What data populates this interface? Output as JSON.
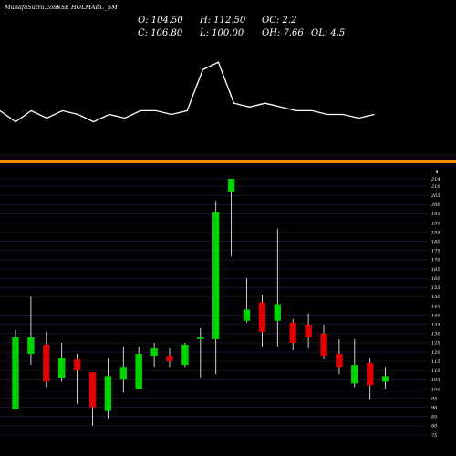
{
  "watermark": "MunafaSutra.com",
  "ticker": "NSE HOLMARC_SM",
  "stats": {
    "o": "O: 104.50",
    "h": "H: 112.50",
    "oc": "OC: 2.2",
    "c": "C: 106.80",
    "l": "L: 100.00",
    "oh": "OH: 7.66",
    "ol": "OL: 4.5"
  },
  "colors": {
    "background": "#000000",
    "up": "#00d400",
    "down": "#e00000",
    "grid": "#23244a",
    "separator": "#ff8c00",
    "line": "#ffffff"
  },
  "indicator": {
    "values": [
      47,
      44,
      47,
      45,
      47,
      46,
      44,
      46,
      45,
      47,
      47,
      46,
      47,
      58,
      60,
      49,
      48,
      49,
      48,
      47,
      47,
      46,
      46,
      45,
      46
    ]
  },
  "chart_data": {
    "type": "candlestick",
    "y_ticks": [
      "214",
      "210",
      "205",
      "200",
      "195",
      "190",
      "185",
      "180",
      "175",
      "170",
      "165",
      "160",
      "155",
      "150",
      "145",
      "140",
      "135",
      "130",
      "125",
      "120",
      "115",
      "110",
      "105",
      "100",
      "95",
      "90",
      "85",
      "80",
      "75"
    ],
    "ylim": [
      75,
      214
    ],
    "candles": [
      {
        "o": 89,
        "h": 132,
        "l": 89,
        "c": 128
      },
      {
        "o": 119,
        "h": 150,
        "l": 113,
        "c": 128
      },
      {
        "o": 124,
        "h": 131,
        "l": 101,
        "c": 104
      },
      {
        "o": 106,
        "h": 125,
        "l": 104,
        "c": 117
      },
      {
        "o": 116,
        "h": 119,
        "l": 92,
        "c": 110
      },
      {
        "o": 109,
        "h": 109,
        "l": 80,
        "c": 90
      },
      {
        "o": 88,
        "h": 117,
        "l": 84,
        "c": 107
      },
      {
        "o": 105,
        "h": 123,
        "l": 98,
        "c": 112
      },
      {
        "o": 100,
        "h": 123,
        "l": 100,
        "c": 119
      },
      {
        "o": 118,
        "h": 125,
        "l": 112,
        "c": 122
      },
      {
        "o": 118,
        "h": 122,
        "l": 112,
        "c": 115
      },
      {
        "o": 113,
        "h": 125,
        "l": 112,
        "c": 124
      },
      {
        "o": 127,
        "h": 133,
        "l": 106,
        "c": 128
      },
      {
        "o": 127,
        "h": 202,
        "l": 108,
        "c": 196
      },
      {
        "o": 207,
        "h": 214,
        "l": 172,
        "c": 214
      },
      {
        "o": 137,
        "h": 160,
        "l": 136,
        "c": 143
      },
      {
        "o": 147,
        "h": 151,
        "l": 123,
        "c": 131
      },
      {
        "o": 137,
        "h": 187,
        "l": 123,
        "c": 146
      },
      {
        "o": 136,
        "h": 138,
        "l": 121,
        "c": 125
      },
      {
        "o": 135,
        "h": 141,
        "l": 122,
        "c": 128
      },
      {
        "o": 130,
        "h": 135,
        "l": 116,
        "c": 118
      },
      {
        "o": 119,
        "h": 127,
        "l": 108,
        "c": 112
      },
      {
        "o": 103,
        "h": 127,
        "l": 101,
        "c": 113
      },
      {
        "o": 114,
        "h": 117,
        "l": 94,
        "c": 102
      },
      {
        "o": 104,
        "h": 112,
        "l": 100,
        "c": 107
      }
    ]
  }
}
